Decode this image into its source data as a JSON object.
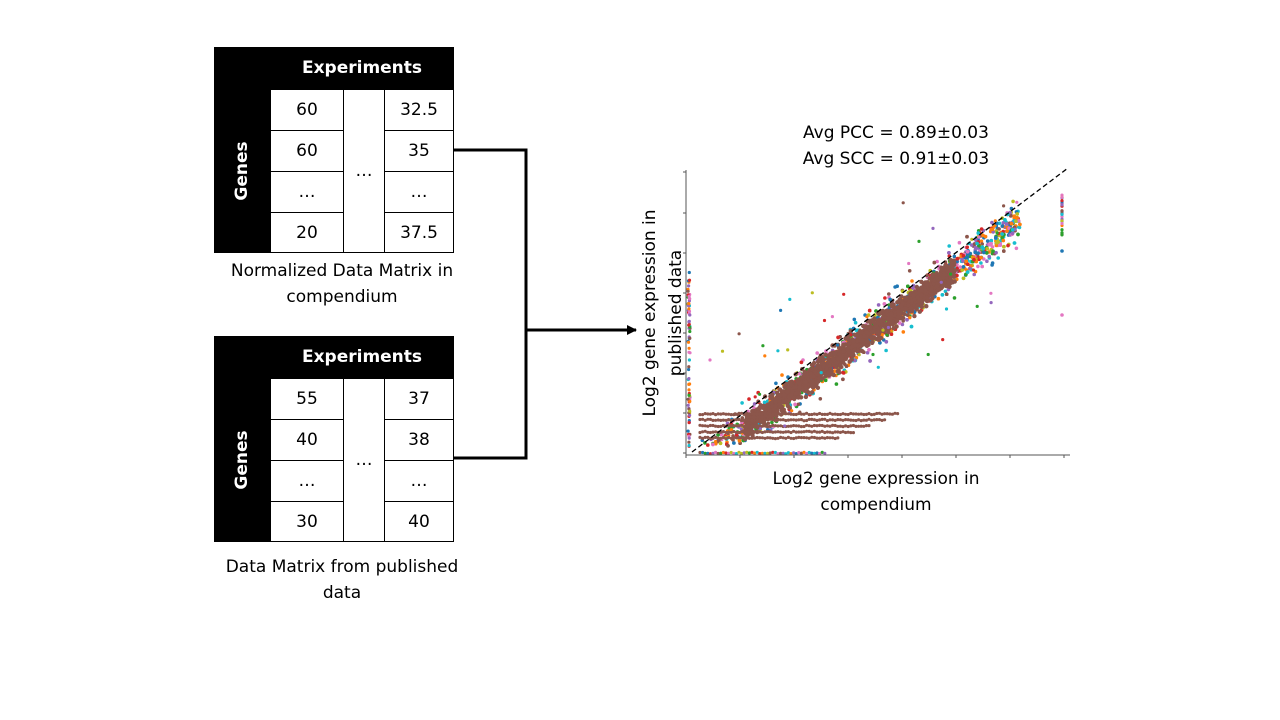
{
  "matrix_top": {
    "header": "Experiments",
    "row_label": "Genes",
    "col1": [
      "60",
      "60",
      "…",
      "20"
    ],
    "col3": [
      "32.5",
      "35",
      "…",
      "37.5"
    ],
    "middle": "…",
    "caption_line1": "Normalized Data Matrix in",
    "caption_line2": "compendium"
  },
  "matrix_bottom": {
    "header": "Experiments",
    "row_label": "Genes",
    "col1": [
      "55",
      "40",
      "…",
      "30"
    ],
    "col3": [
      "37",
      "38",
      "…",
      "40"
    ],
    "middle": "…",
    "caption_line1": "Data Matrix from published",
    "caption_line2": "data"
  },
  "plot": {
    "stat_line1": "Avg PCC = 0.89±0.03",
    "stat_line2": "Avg SCC = 0.91±0.03",
    "xlabel_line1": "Log2 gene expression  in",
    "xlabel_line2": "compendium",
    "ylabel_line1": "Log2 gene expression  in",
    "ylabel_line2": "published data",
    "colors": [
      "#1f77b4",
      "#ff7f0e",
      "#2ca02c",
      "#d62728",
      "#9467bd",
      "#e377c2",
      "#17becf",
      "#bcbd22",
      "#8c564b"
    ]
  },
  "chart_data": {
    "type": "scatter",
    "title": "",
    "xlabel": "Log2 gene expression  in compendium",
    "ylabel": "Log2 gene expression  in published data",
    "reference_line": "y = x (dashed diagonal)",
    "annotations": [
      "Avg PCC = 0.89±0.03",
      "Avg SCC = 0.91±0.03"
    ],
    "grid": false
  }
}
